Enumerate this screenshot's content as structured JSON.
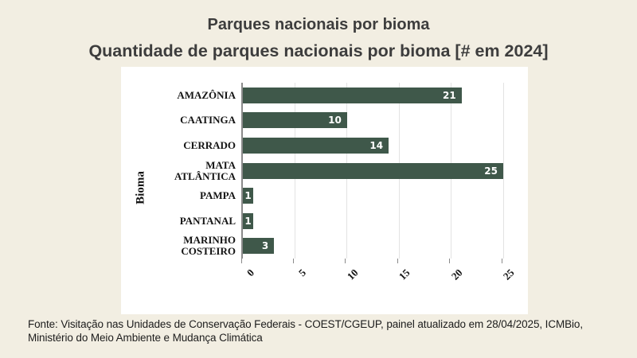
{
  "page": {
    "background_color": "#f2eee2",
    "panel_background": "#ffffff"
  },
  "chart_data": {
    "type": "bar",
    "orientation": "horizontal",
    "title": "Parques nacionais por bioma",
    "subtitle": "Quantidade de parques nacionais por bioma [# em 2024]",
    "categories": [
      "AMAZÔNIA",
      "CAATINGA",
      "CERRADO",
      "MATA ATLÂNTICA",
      "PAMPA",
      "PANTANAL",
      "MARINHO COSTEIRO"
    ],
    "values": [
      21,
      10,
      14,
      25,
      1,
      1,
      3
    ],
    "ylabel": "Bioma",
    "xlabel": "",
    "xticks": [
      0,
      5,
      10,
      15,
      20,
      25
    ],
    "xlim": [
      0,
      27.5
    ],
    "grid": true,
    "legend": false,
    "bar_color": "#3f584a",
    "value_label_color": "#ffffff",
    "xtick_rotation_deg": 45
  },
  "footer": {
    "lines": [
      "Fonte: Visitação nas Unidades de Conservação Federais - COEST/CGEUP, painel atualizado em 28/04/2025, ICMBio,",
      "Ministério do Meio Ambiente e Mudança Climática"
    ]
  }
}
